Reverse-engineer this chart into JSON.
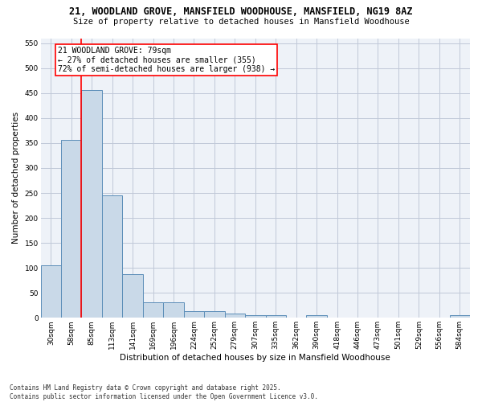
{
  "title": "21, WOODLAND GROVE, MANSFIELD WOODHOUSE, MANSFIELD, NG19 8AZ",
  "subtitle": "Size of property relative to detached houses in Mansfield Woodhouse",
  "xlabel": "Distribution of detached houses by size in Mansfield Woodhouse",
  "ylabel": "Number of detached properties",
  "footnote": "Contains HM Land Registry data © Crown copyright and database right 2025.\nContains public sector information licensed under the Open Government Licence v3.0.",
  "bin_labels": [
    "30sqm",
    "58sqm",
    "85sqm",
    "113sqm",
    "141sqm",
    "169sqm",
    "196sqm",
    "224sqm",
    "252sqm",
    "279sqm",
    "307sqm",
    "335sqm",
    "362sqm",
    "390sqm",
    "418sqm",
    "446sqm",
    "473sqm",
    "501sqm",
    "529sqm",
    "556sqm",
    "584sqm"
  ],
  "bar_values": [
    105,
    357,
    456,
    245,
    88,
    31,
    31,
    13,
    13,
    8,
    6,
    6,
    0,
    5,
    0,
    0,
    0,
    0,
    0,
    0,
    5
  ],
  "bar_color": "#c9d9e8",
  "bar_edge_color": "#5b8db8",
  "grid_color": "#c0c8d8",
  "background_color": "#eef2f8",
  "annotation_box_text": "21 WOODLAND GROVE: 79sqm\n← 27% of detached houses are smaller (355)\n72% of semi-detached houses are larger (938) →",
  "redline_bin_index": 1.5,
  "ylim": [
    0,
    560
  ],
  "yticks": [
    0,
    50,
    100,
    150,
    200,
    250,
    300,
    350,
    400,
    450,
    500,
    550
  ],
  "title_fontsize": 8.5,
  "subtitle_fontsize": 7.5,
  "xlabel_fontsize": 7.5,
  "ylabel_fontsize": 7.5,
  "tick_fontsize": 6.5,
  "annot_fontsize": 7,
  "footnote_fontsize": 5.5
}
